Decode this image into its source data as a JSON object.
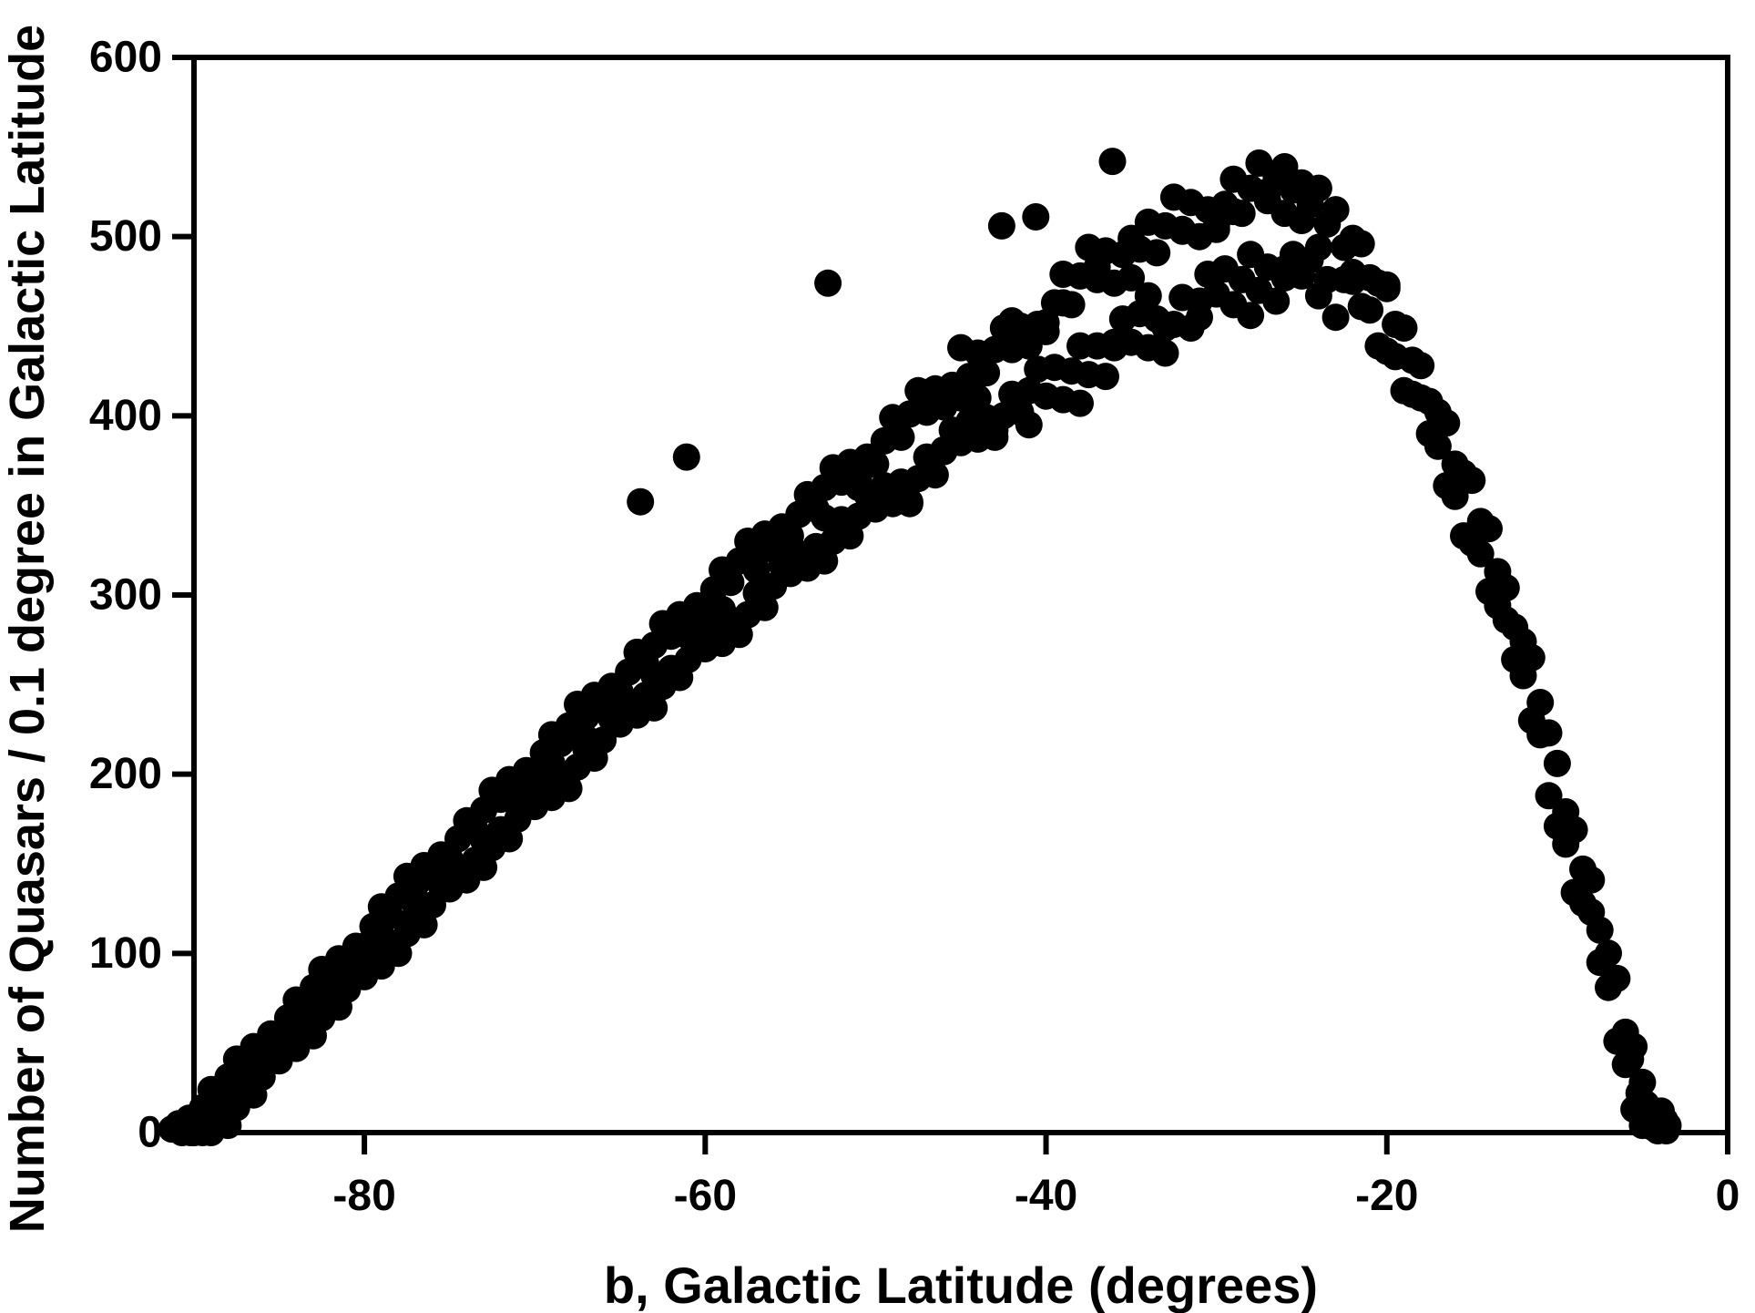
{
  "figure": {
    "background": "#ffffff",
    "axis_color": "#000000",
    "marker_color": "#000000"
  },
  "chart_data": {
    "type": "scatter",
    "title": "",
    "xlabel": "b, Galactic Latitude (degrees)",
    "ylabel": "Number of Quasars / 0.1 degree in Galactic Latitude",
    "xlim": [
      -90,
      0
    ],
    "ylim": [
      0,
      600
    ],
    "x_ticks": [
      -80,
      -60,
      -40,
      -20,
      0
    ],
    "y_ticks": [
      0,
      100,
      200,
      300,
      400,
      500,
      600
    ],
    "grid": false,
    "legend": null,
    "marker": {
      "shape": "circle",
      "color": "#000000",
      "radius_px": 15
    },
    "points": [
      [
        -91.3,
        2
      ],
      [
        -90.9,
        5
      ],
      [
        -90.7,
        0
      ],
      [
        -90.5,
        3
      ],
      [
        -90.4,
        2
      ],
      [
        -90.3,
        8
      ],
      [
        -90.2,
        0
      ],
      [
        -90.1,
        5
      ],
      [
        -90,
        4
      ],
      [
        -90,
        0
      ],
      [
        -89.5,
        14
      ],
      [
        -89.5,
        0
      ],
      [
        -89,
        24
      ],
      [
        -89,
        0
      ],
      [
        -88.5,
        21
      ],
      [
        -88.5,
        7
      ],
      [
        -88,
        31
      ],
      [
        -88,
        4
      ],
      [
        -87.5,
        41
      ],
      [
        -87.5,
        14
      ],
      [
        -87,
        38
      ],
      [
        -87,
        24
      ],
      [
        -86.5,
        48
      ],
      [
        -86.5,
        21
      ],
      [
        -86,
        45
      ],
      [
        -86,
        31
      ],
      [
        -85.5,
        55
      ],
      [
        -85.5,
        41
      ],
      [
        -85,
        54
      ],
      [
        -85,
        40
      ],
      [
        -84.5,
        64
      ],
      [
        -84.5,
        50
      ],
      [
        -84,
        74
      ],
      [
        -84,
        47
      ],
      [
        -83.5,
        71
      ],
      [
        -83.5,
        57
      ],
      [
        -83,
        81
      ],
      [
        -83,
        54
      ],
      [
        -82.5,
        91
      ],
      [
        -82.5,
        64
      ],
      [
        -82,
        88
      ],
      [
        -82,
        74
      ],
      [
        -81.5,
        97
      ],
      [
        -81.5,
        70
      ],
      [
        -81,
        94
      ],
      [
        -81,
        80
      ],
      [
        -80.5,
        104
      ],
      [
        -80.5,
        90
      ],
      [
        -80,
        104
      ],
      [
        -80,
        87
      ],
      [
        -79.5,
        115
      ],
      [
        -79.5,
        98
      ],
      [
        -79,
        126
      ],
      [
        -79,
        93
      ],
      [
        -78.5,
        121
      ],
      [
        -78.5,
        104
      ],
      [
        -78,
        132
      ],
      [
        -78,
        100
      ],
      [
        -77.5,
        143
      ],
      [
        -77.5,
        111
      ],
      [
        -77,
        138
      ],
      [
        -77,
        121
      ],
      [
        -76.5,
        149
      ],
      [
        -76.5,
        116
      ],
      [
        -76,
        144
      ],
      [
        -76,
        127
      ],
      [
        -75.5,
        155
      ],
      [
        -75.5,
        138
      ],
      [
        -75,
        153
      ],
      [
        -75,
        136
      ],
      [
        -74.5,
        164
      ],
      [
        -74.5,
        147
      ],
      [
        -74,
        174
      ],
      [
        -74,
        141
      ],
      [
        -73.5,
        169
      ],
      [
        -73.5,
        152
      ],
      [
        -73,
        180
      ],
      [
        -73,
        148
      ],
      [
        -72.5,
        191
      ],
      [
        -72.5,
        159
      ],
      [
        -72,
        186
      ],
      [
        -72,
        169
      ],
      [
        -71.5,
        197
      ],
      [
        -71.5,
        164
      ],
      [
        -71,
        192
      ],
      [
        -71,
        175
      ],
      [
        -70.5,
        202
      ],
      [
        -70.5,
        185
      ],
      [
        -70,
        200
      ],
      [
        -70,
        182
      ],
      [
        -69.5,
        212
      ],
      [
        -69.5,
        193
      ],
      [
        -69,
        222
      ],
      [
        -69,
        187
      ],
      [
        -68.5,
        217
      ],
      [
        -68.5,
        199
      ],
      [
        -68,
        227
      ],
      [
        -68,
        192
      ],
      [
        -67.5,
        239
      ],
      [
        -67.5,
        204
      ],
      [
        -67,
        232
      ],
      [
        -67,
        214
      ],
      [
        -66.5,
        244
      ],
      [
        -66.5,
        209
      ],
      [
        -66,
        238
      ],
      [
        -66,
        219
      ],
      [
        -65.5,
        249
      ],
      [
        -65.5,
        231
      ],
      [
        -65,
        246
      ],
      [
        -65,
        228
      ],
      [
        -64.5,
        257
      ],
      [
        -64.5,
        238
      ],
      [
        -64,
        268
      ],
      [
        -64,
        233
      ],
      [
        -63.5,
        262
      ],
      [
        -63.5,
        244
      ],
      [
        -63,
        272
      ],
      [
        -63,
        237
      ],
      [
        -62.5,
        284
      ],
      [
        -62.5,
        249
      ],
      [
        -62,
        277
      ],
      [
        -62,
        259
      ],
      [
        -61.5,
        289
      ],
      [
        -61.5,
        254
      ],
      [
        -61,
        283
      ],
      [
        -61,
        264
      ],
      [
        -60.5,
        294
      ],
      [
        -60.5,
        276
      ],
      [
        -60,
        291
      ],
      [
        -60,
        270
      ],
      [
        -59.5,
        303
      ],
      [
        -59.5,
        281
      ],
      [
        -59,
        314
      ],
      [
        -59,
        273
      ],
      [
        -58.5,
        307
      ],
      [
        -58.5,
        286
      ],
      [
        -58,
        319
      ],
      [
        -58,
        278
      ],
      [
        -57.5,
        330
      ],
      [
        -57.5,
        289
      ],
      [
        -57,
        322
      ],
      [
        -57,
        301
      ],
      [
        -56.5,
        334
      ],
      [
        -56.5,
        293
      ],
      [
        -56,
        327
      ],
      [
        -56,
        305
      ],
      [
        -55.5,
        338
      ],
      [
        -55.5,
        317
      ],
      [
        -55,
        333
      ],
      [
        -55,
        312
      ],
      [
        -54.5,
        345
      ],
      [
        -54.5,
        323
      ],
      [
        -54,
        356
      ],
      [
        -54,
        315
      ],
      [
        -53.5,
        348
      ],
      [
        -53.5,
        327
      ],
      [
        -53,
        360
      ],
      [
        -53,
        319
      ],
      [
        -52.5,
        371
      ],
      [
        -52.5,
        330
      ],
      [
        -52,
        363
      ],
      [
        -52,
        342
      ],
      [
        -51.5,
        374
      ],
      [
        -51.5,
        333
      ],
      [
        -51,
        366
      ],
      [
        -51,
        344
      ],
      [
        -50.5,
        377
      ],
      [
        -50.5,
        356
      ],
      [
        -50,
        373
      ],
      [
        -50,
        348
      ],
      [
        -49.5,
        386
      ],
      [
        -49.5,
        361
      ],
      [
        -49,
        399
      ],
      [
        -49,
        351
      ],
      [
        -48.5,
        388
      ],
      [
        -48.5,
        363
      ],
      [
        -48,
        401
      ],
      [
        -48,
        352
      ],
      [
        -47.5,
        414
      ],
      [
        -47.5,
        365
      ],
      [
        -47,
        402
      ],
      [
        -47,
        377
      ],
      [
        -46.5,
        415
      ],
      [
        -46.5,
        367
      ],
      [
        -46,
        405
      ],
      [
        -46,
        380
      ],
      [
        -45.5,
        417
      ],
      [
        -45.5,
        392
      ],
      [
        -45,
        410
      ],
      [
        -45,
        385
      ],
      [
        -44.5,
        422
      ],
      [
        -44.5,
        397
      ],
      [
        -44,
        435
      ],
      [
        -44,
        387
      ],
      [
        -43.5,
        424
      ],
      [
        -43.5,
        399
      ],
      [
        -43,
        437
      ],
      [
        -43,
        388
      ],
      [
        -42.5,
        449
      ],
      [
        -42.5,
        400
      ],
      [
        -42,
        437
      ],
      [
        -42,
        412
      ],
      [
        -41.5,
        450
      ],
      [
        -41.5,
        402
      ],
      [
        -41,
        439
      ],
      [
        -41,
        414
      ],
      [
        -40.5,
        451
      ],
      [
        -40.5,
        426
      ],
      [
        -40,
        447
      ],
      [
        -40,
        411
      ],
      [
        -39.5,
        463
      ],
      [
        -39.5,
        427
      ],
      [
        -39,
        479
      ],
      [
        -39,
        409
      ],
      [
        -38.5,
        462
      ],
      [
        -38.5,
        425
      ],
      [
        -38,
        478
      ],
      [
        -38,
        407
      ],
      [
        -37.5,
        494
      ],
      [
        -37.5,
        423
      ],
      [
        -37,
        476
      ],
      [
        -37,
        439
      ],
      [
        -36.5,
        492
      ],
      [
        -36.5,
        422
      ],
      [
        -36,
        474
      ],
      [
        -36,
        438
      ],
      [
        -35.5,
        490
      ],
      [
        -35.5,
        454
      ],
      [
        -35,
        477
      ],
      [
        -35,
        441
      ],
      [
        -34.5,
        493
      ],
      [
        -34.5,
        457
      ],
      [
        -34,
        508
      ],
      [
        -34,
        438
      ],
      [
        -33.5,
        491
      ],
      [
        -33.5,
        454
      ],
      [
        -33,
        506
      ],
      [
        -33,
        435
      ],
      [
        -32.5,
        522
      ],
      [
        -32.5,
        451
      ],
      [
        -32,
        503
      ],
      [
        -32,
        466
      ],
      [
        -31.5,
        519
      ],
      [
        -31.5,
        449
      ],
      [
        -31,
        500
      ],
      [
        -31,
        464
      ],
      [
        -30.5,
        515
      ],
      [
        -30.5,
        479
      ],
      [
        -30,
        504
      ],
      [
        -30,
        468
      ],
      [
        -29.5,
        518
      ],
      [
        -29.5,
        482
      ],
      [
        -29,
        532
      ],
      [
        -29,
        462
      ],
      [
        -28.5,
        513
      ],
      [
        -28.5,
        476
      ],
      [
        -28,
        527
      ],
      [
        -28,
        456
      ],
      [
        -27.5,
        541
      ],
      [
        -27.5,
        470
      ],
      [
        -27,
        520
      ],
      [
        -27,
        483
      ],
      [
        -26.5,
        534
      ],
      [
        -26.5,
        464
      ],
      [
        -26,
        513
      ],
      [
        -26,
        477
      ],
      [
        -25.5,
        526
      ],
      [
        -25.5,
        490
      ],
      [
        -25,
        509
      ],
      [
        -25,
        478
      ],
      [
        -24.5,
        518
      ],
      [
        -24.5,
        487
      ],
      [
        -24,
        527
      ],
      [
        -24,
        467
      ],
      [
        -23.5,
        507
      ],
      [
        -23.5,
        476
      ],
      [
        -23,
        515
      ],
      [
        -23,
        455
      ],
      [
        -22.5,
        494
      ],
      [
        -22.5,
        476
      ],
      [
        -22,
        499
      ],
      [
        -22,
        480
      ],
      [
        -21.5,
        496
      ],
      [
        -21.5,
        461
      ],
      [
        -21,
        477
      ],
      [
        -21,
        459
      ],
      [
        -20.5,
        474
      ],
      [
        -20.5,
        439
      ],
      [
        -20,
        471
      ],
      [
        -20,
        436
      ],
      [
        -19.5,
        451
      ],
      [
        -19.5,
        433
      ],
      [
        -19,
        449
      ],
      [
        -19,
        414
      ],
      [
        -18.5,
        431
      ],
      [
        -18.5,
        412
      ],
      [
        -18,
        428
      ],
      [
        -18,
        410
      ],
      [
        -17.5,
        408
      ],
      [
        -17.5,
        390
      ],
      [
        -17,
        402
      ],
      [
        -17,
        383
      ],
      [
        -16.5,
        396
      ],
      [
        -16.5,
        361
      ],
      [
        -16,
        373
      ],
      [
        -16,
        355
      ],
      [
        -15.5,
        368
      ],
      [
        -15.5,
        333
      ],
      [
        -15,
        364
      ],
      [
        -15,
        329
      ],
      [
        -14.5,
        341
      ],
      [
        -14.5,
        323
      ],
      [
        -14,
        337
      ],
      [
        -14,
        302
      ],
      [
        -13.5,
        313
      ],
      [
        -13.5,
        294
      ],
      [
        -13,
        304
      ],
      [
        -13,
        286
      ],
      [
        -12.5,
        282
      ],
      [
        -12.5,
        264
      ],
      [
        -12,
        274
      ],
      [
        -12,
        255
      ],
      [
        -11.5,
        265
      ],
      [
        -11.5,
        230
      ],
      [
        -11,
        240
      ],
      [
        -11,
        222
      ],
      [
        -10.5,
        223
      ],
      [
        -10.5,
        188
      ],
      [
        -10,
        206
      ],
      [
        -10,
        171
      ],
      [
        -9.5,
        179
      ],
      [
        -9.5,
        161
      ],
      [
        -9,
        169
      ],
      [
        -9,
        134
      ],
      [
        -8.5,
        147
      ],
      [
        -8.5,
        128
      ],
      [
        -8,
        141
      ],
      [
        -8,
        123
      ],
      [
        -7.5,
        113
      ],
      [
        -7.5,
        95
      ],
      [
        -7,
        100
      ],
      [
        -7,
        81
      ],
      [
        -6.5,
        86
      ],
      [
        -6.5,
        51
      ],
      [
        -6,
        56
      ],
      [
        -6,
        38
      ],
      [
        -5.5,
        48
      ],
      [
        -5.5,
        13
      ],
      [
        -5,
        28
      ],
      [
        -5,
        4
      ],
      [
        -5.7,
        41
      ],
      [
        -5.2,
        22
      ],
      [
        -5,
        10
      ],
      [
        -4.8,
        16
      ],
      [
        -4.7,
        5
      ],
      [
        -4.5,
        12
      ],
      [
        -4.4,
        3
      ],
      [
        -4.3,
        8
      ],
      [
        -4.1,
        1
      ],
      [
        -4,
        5
      ],
      [
        -3.9,
        12
      ],
      [
        -3.8,
        2
      ],
      [
        -3.7,
        7
      ],
      [
        -3.6,
        1
      ],
      [
        -3.5,
        4
      ],
      [
        -48,
        351
      ],
      [
        -47,
        413
      ],
      [
        -46,
        381
      ],
      [
        -45,
        438
      ],
      [
        -44,
        410
      ],
      [
        -43,
        392
      ],
      [
        -42,
        453
      ],
      [
        -41,
        395
      ],
      [
        -40,
        452
      ],
      [
        -39,
        463
      ],
      [
        -38,
        439
      ],
      [
        -37,
        483
      ],
      [
        -36,
        441
      ],
      [
        -35,
        499
      ],
      [
        -34,
        467
      ],
      [
        -33,
        449
      ],
      [
        -32,
        504
      ],
      [
        -31,
        455
      ],
      [
        -30,
        506
      ],
      [
        -29,
        514
      ],
      [
        -28,
        490
      ],
      [
        -27,
        525
      ],
      [
        -26,
        482
      ],
      [
        -25,
        530
      ],
      [
        -24,
        494
      ],
      [
        -23,
        515
      ],
      [
        -22,
        475
      ],
      [
        -89,
        10
      ],
      [
        -87,
        32
      ],
      [
        -85,
        48
      ],
      [
        -83,
        73
      ],
      [
        -81,
        86
      ],
      [
        -79,
        110
      ],
      [
        -77,
        127
      ],
      [
        -75,
        152
      ],
      [
        -73,
        163
      ],
      [
        -71,
        186
      ],
      [
        -69,
        206
      ],
      [
        -67,
        220
      ],
      [
        -65,
        244
      ],
      [
        -63,
        255
      ],
      [
        -61,
        277
      ],
      [
        -59,
        292
      ],
      [
        -57,
        314
      ],
      [
        -55,
        323
      ],
      [
        -53,
        343
      ],
      [
        -51,
        360
      ],
      [
        -63.8,
        352
      ],
      [
        -61.1,
        377
      ],
      [
        -52.8,
        474
      ],
      [
        -42.6,
        506
      ],
      [
        -40.6,
        511
      ],
      [
        -36.1,
        542
      ],
      [
        -26,
        539
      ],
      [
        -20,
        473
      ]
    ]
  }
}
